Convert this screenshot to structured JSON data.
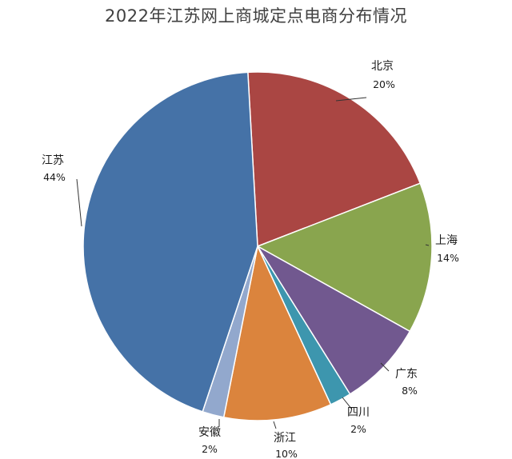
{
  "chart_data": {
    "type": "pie",
    "title": "2022年江苏网上商城定点电商分布情况",
    "slices": [
      {
        "name": "北京",
        "value": 20,
        "label": "20%",
        "color": "#AA4643"
      },
      {
        "name": "上海",
        "value": 14,
        "label": "14%",
        "color": "#89A54E"
      },
      {
        "name": "广东",
        "value": 8,
        "label": "8%",
        "color": "#71588F"
      },
      {
        "name": "四川",
        "value": 2,
        "label": "2%",
        "color": "#3D96AE"
      },
      {
        "name": "浙江",
        "value": 10,
        "label": "10%",
        "color": "#DB843D"
      },
      {
        "name": "安徽",
        "value": 2,
        "label": "2%",
        "color": "#92A8CD"
      },
      {
        "name": "江苏",
        "value": 44,
        "label": "44%",
        "color": "#4572A7"
      }
    ]
  }
}
